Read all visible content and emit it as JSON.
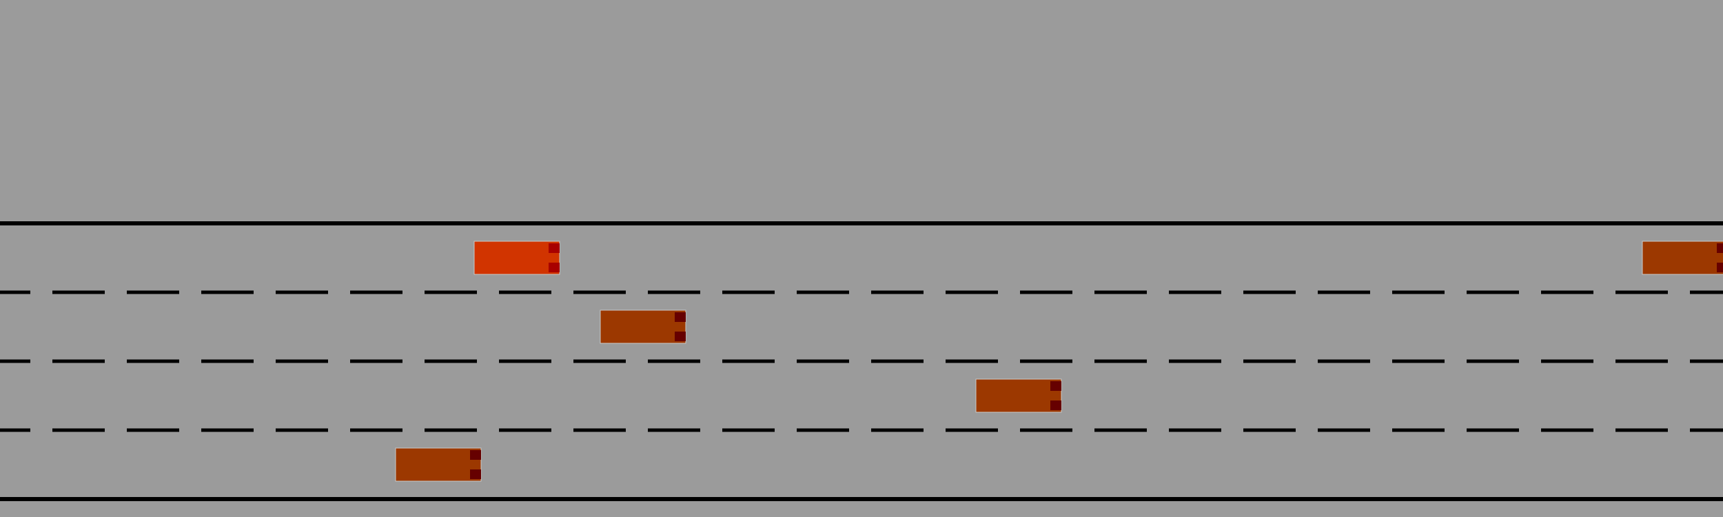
{
  "scene": {
    "type": "highway-driving-simulation",
    "background_color": "#9b9b9b",
    "line_color": "#000000",
    "lane_count": 4
  },
  "vehicles": {
    "ego": {
      "role": "ego-vehicle",
      "lane": 1,
      "color": "#d13400",
      "light_color": "#a80000",
      "heading": "right"
    },
    "others": [
      {
        "role": "other-vehicle",
        "lane": 2,
        "color": "#9c3800",
        "light_color": "#660000",
        "heading": "right"
      },
      {
        "role": "other-vehicle",
        "lane": 3,
        "color": "#9c3800",
        "light_color": "#660000",
        "heading": "right"
      },
      {
        "role": "other-vehicle",
        "lane": 4,
        "color": "#9c3800",
        "light_color": "#660000",
        "heading": "right"
      },
      {
        "role": "other-vehicle",
        "lane": 1,
        "color": "#9c3800",
        "light_color": "#660000",
        "heading": "right"
      }
    ]
  }
}
